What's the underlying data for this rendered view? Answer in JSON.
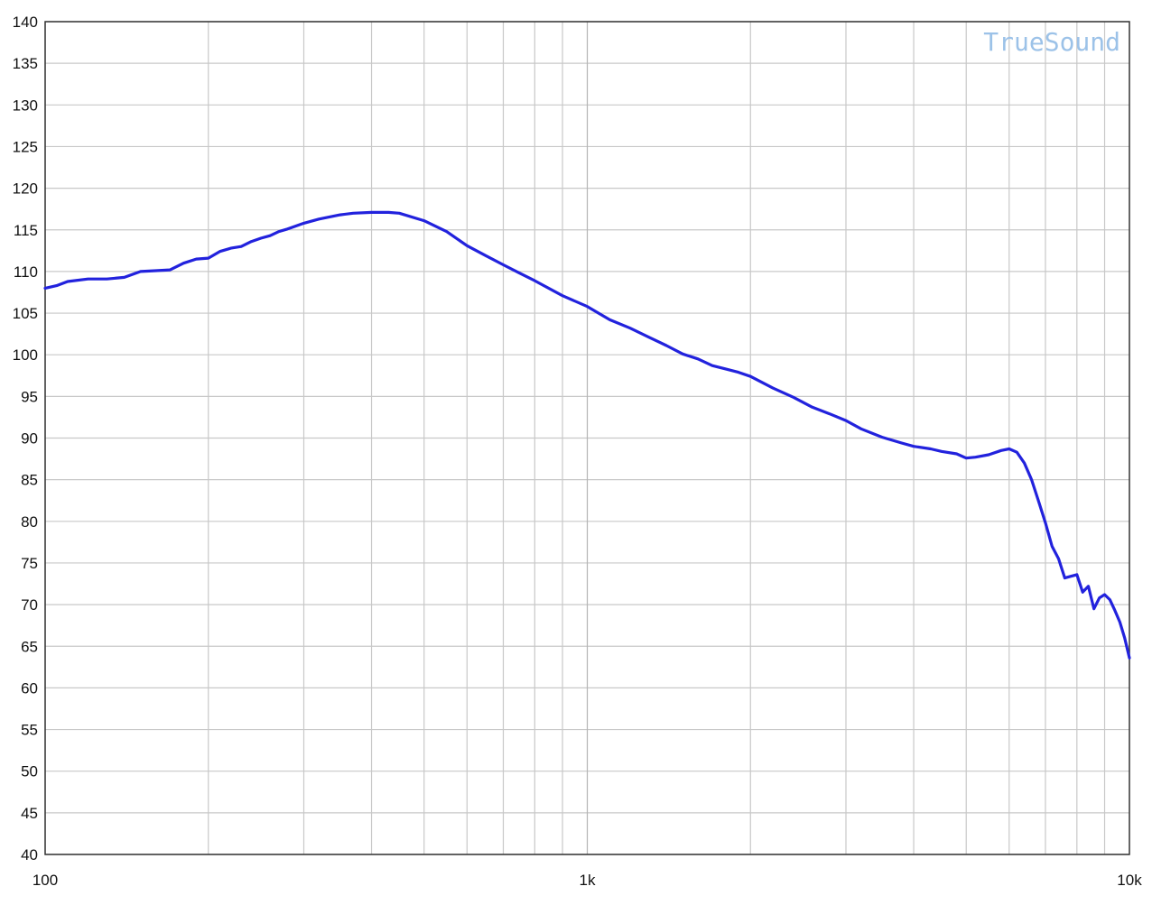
{
  "chart_data": {
    "type": "line",
    "title": "",
    "xlabel": "",
    "ylabel": "",
    "x_scale": "log",
    "xlim": [
      100,
      10000
    ],
    "ylim": [
      40,
      140
    ],
    "grid": true,
    "watermark": "TrueSound",
    "colors": {
      "line": "#2222dd",
      "grid": "#c8c8c8",
      "axes": "#333333",
      "watermark": "#9cc2e8"
    },
    "y_ticks": [
      40,
      45,
      50,
      55,
      60,
      65,
      70,
      75,
      80,
      85,
      90,
      95,
      100,
      105,
      110,
      115,
      120,
      125,
      130,
      135,
      140
    ],
    "y_tick_labels": [
      "40",
      "45",
      "50",
      "55",
      "60",
      "65",
      "70",
      "75",
      "80",
      "85",
      "90",
      "95",
      "100",
      "105",
      "110",
      "115",
      "120",
      "125",
      "130",
      "135",
      "140"
    ],
    "x_ticks": [
      100,
      1000,
      10000
    ],
    "x_tick_labels": [
      "100",
      "1k",
      "10k"
    ],
    "series": [
      {
        "x": [
          100,
          105,
          110,
          120,
          130,
          140,
          150,
          160,
          170,
          180,
          190,
          200,
          210,
          220,
          230,
          240,
          250,
          260,
          270,
          280,
          300,
          320,
          350,
          370,
          400,
          430,
          450,
          500,
          550,
          600,
          650,
          700,
          750,
          800,
          900,
          1000,
          1100,
          1200,
          1300,
          1400,
          1500,
          1600,
          1700,
          1800,
          1900,
          2000,
          2200,
          2400,
          2600,
          2800,
          3000,
          3200,
          3500,
          3800,
          4000,
          4300,
          4500,
          4800,
          5000,
          5200,
          5500,
          5800,
          6000,
          6200,
          6400,
          6600,
          6800,
          7000,
          7200,
          7400,
          7600,
          7800,
          8000,
          8200,
          8400,
          8600,
          8800,
          9000,
          9200,
          9400,
          9600,
          9800,
          10000
        ],
        "y": [
          108,
          108.3,
          108.8,
          109.1,
          109.1,
          109.3,
          110,
          110.1,
          110.2,
          111,
          111.5,
          111.6,
          112.4,
          112.8,
          113,
          113.6,
          114,
          114.3,
          114.8,
          115.1,
          115.8,
          116.3,
          116.8,
          117,
          117.1,
          117.1,
          117,
          116.1,
          114.8,
          113.1,
          111.9,
          110.8,
          109.8,
          108.9,
          107.1,
          105.8,
          104.2,
          103.2,
          102.1,
          101.1,
          100.1,
          99.5,
          98.7,
          98.3,
          97.9,
          97.4,
          96,
          94.9,
          93.7,
          92.9,
          92.1,
          91.1,
          90.1,
          89.4,
          89,
          88.7,
          88.4,
          88.1,
          87.6,
          87.7,
          88,
          88.5,
          88.7,
          88.3,
          87,
          85,
          82.4,
          79.8,
          77,
          75.5,
          73.2,
          73.4,
          73.6,
          71.5,
          72.2,
          69.5,
          70.8,
          71.2,
          70.6,
          69.3,
          67.9,
          66,
          63.6
        ]
      }
    ]
  }
}
